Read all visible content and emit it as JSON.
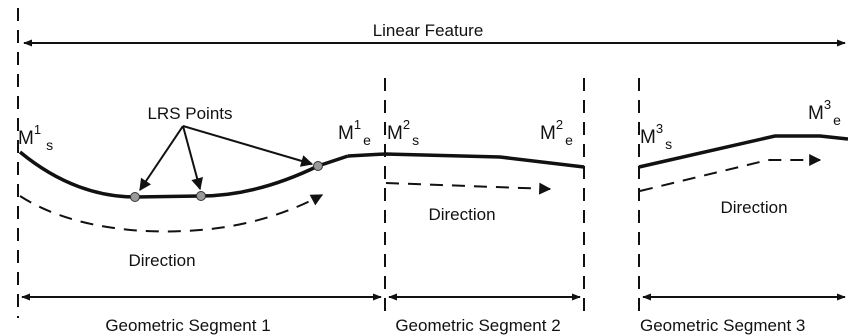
{
  "title": "Linear Feature",
  "lrs_points_label": "LRS Points",
  "direction_label": "Direction",
  "segments": [
    {
      "label": "Geometric Segment 1",
      "start_marker": {
        "base": "M",
        "sup": "1",
        "sub": "s"
      },
      "end_marker": {
        "base": "M",
        "sup": "1",
        "sub": "e"
      }
    },
    {
      "label": "Geometric Segment 2",
      "start_marker": {
        "base": "M",
        "sup": "2",
        "sub": "s"
      },
      "end_marker": {
        "base": "M",
        "sup": "2",
        "sub": "e"
      }
    },
    {
      "label": "Geometric Segment 3",
      "start_marker": {
        "base": "M",
        "sup": "3",
        "sub": "s"
      },
      "end_marker": {
        "base": "M",
        "sup": "3",
        "sub": "e"
      }
    }
  ],
  "colors": {
    "line": "#111111",
    "point_fill": "#9a9a9a",
    "background": "#ffffff"
  }
}
